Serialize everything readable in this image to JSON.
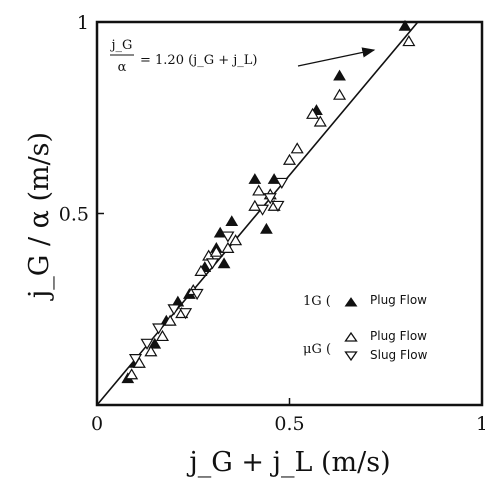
{
  "chart_data": {
    "type": "scatter",
    "xlabel": "j_G + j_L (m/s)",
    "ylabel": "j_G / α (m/s)",
    "xlim": [
      0,
      1
    ],
    "ylim": [
      0,
      1
    ],
    "x_ticks": [
      {
        "value": 0,
        "label": "0"
      },
      {
        "value": 0.5,
        "label": "0.5"
      },
      {
        "value": 1,
        "label": "1"
      }
    ],
    "y_ticks": [
      {
        "value": 0.5,
        "label": "0.5"
      },
      {
        "value": 1,
        "label": "1"
      }
    ],
    "grid": false,
    "fit_line": {
      "slope": 1.2,
      "intercept": 0,
      "equation_numerator": "j_G",
      "equation_denominator": "α",
      "equation_rhs": "= 1.20 (j_G + j_L)"
    },
    "series": [
      {
        "group": "1G (",
        "name": "Plug Flow",
        "marker": "filled-triangle-up",
        "points": [
          [
            0.08,
            0.07
          ],
          [
            0.1,
            0.11
          ],
          [
            0.15,
            0.16
          ],
          [
            0.18,
            0.22
          ],
          [
            0.21,
            0.27
          ],
          [
            0.24,
            0.29
          ],
          [
            0.28,
            0.36
          ],
          [
            0.31,
            0.41
          ],
          [
            0.32,
            0.45
          ],
          [
            0.33,
            0.37
          ],
          [
            0.35,
            0.48
          ],
          [
            0.41,
            0.59
          ],
          [
            0.44,
            0.46
          ],
          [
            0.46,
            0.59
          ],
          [
            0.57,
            0.77
          ],
          [
            0.63,
            0.86
          ],
          [
            0.8,
            0.99
          ]
        ]
      },
      {
        "group": "μG (",
        "name": "Plug Flow",
        "marker": "open-triangle-up",
        "points": [
          [
            0.09,
            0.08
          ],
          [
            0.11,
            0.11
          ],
          [
            0.14,
            0.14
          ],
          [
            0.17,
            0.18
          ],
          [
            0.19,
            0.22
          ],
          [
            0.22,
            0.24
          ],
          [
            0.25,
            0.3
          ],
          [
            0.27,
            0.35
          ],
          [
            0.29,
            0.39
          ],
          [
            0.31,
            0.4
          ],
          [
            0.34,
            0.41
          ],
          [
            0.36,
            0.43
          ],
          [
            0.41,
            0.52
          ],
          [
            0.42,
            0.56
          ],
          [
            0.45,
            0.55
          ],
          [
            0.46,
            0.52
          ],
          [
            0.5,
            0.64
          ],
          [
            0.52,
            0.67
          ],
          [
            0.56,
            0.76
          ],
          [
            0.58,
            0.74
          ],
          [
            0.63,
            0.81
          ],
          [
            0.81,
            0.95
          ]
        ]
      },
      {
        "group": "μG (",
        "name": "Slug Flow",
        "marker": "open-triangle-down",
        "points": [
          [
            0.1,
            0.12
          ],
          [
            0.13,
            0.16
          ],
          [
            0.16,
            0.2
          ],
          [
            0.2,
            0.25
          ],
          [
            0.23,
            0.24
          ],
          [
            0.26,
            0.29
          ],
          [
            0.3,
            0.37
          ],
          [
            0.34,
            0.44
          ],
          [
            0.43,
            0.51
          ],
          [
            0.45,
            0.54
          ],
          [
            0.47,
            0.52
          ],
          [
            0.48,
            0.58
          ]
        ]
      }
    ]
  }
}
